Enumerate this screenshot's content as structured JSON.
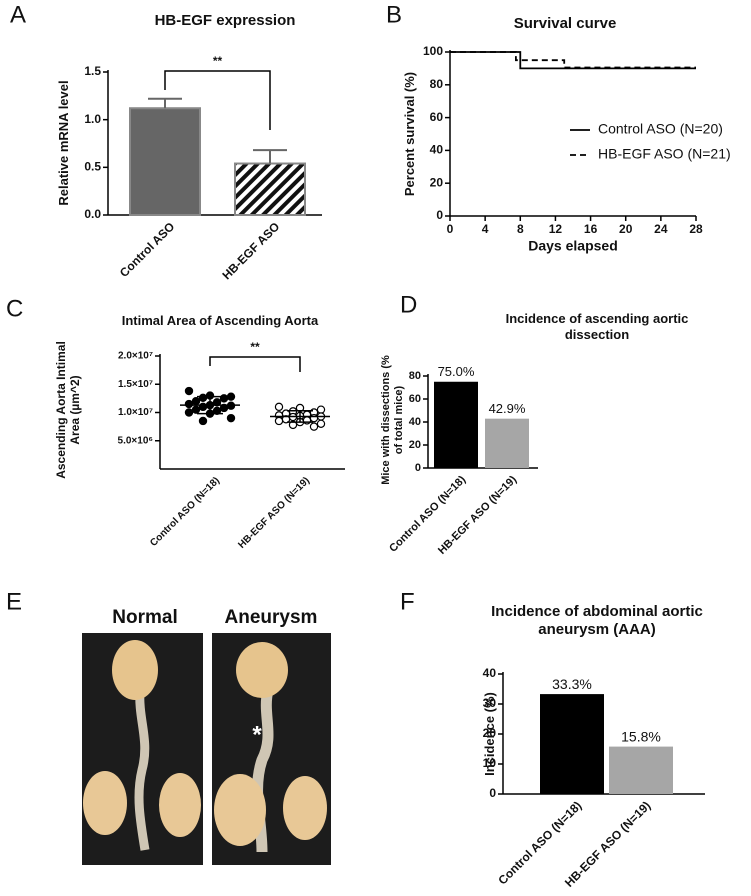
{
  "panel_labels": [
    "A",
    "B",
    "C",
    "D",
    "E",
    "F"
  ],
  "photo": {
    "labels": [
      "Normal",
      "Aneurysm"
    ],
    "marker": "*"
  },
  "chart_data": [
    {
      "type": "bar",
      "title": "HB-EGF expression",
      "y_label": "Relative mRNA level",
      "categories": [
        "Control ASO",
        "HB-EGF ASO"
      ],
      "values": [
        1.12,
        0.54
      ],
      "errors": [
        0.1,
        0.14
      ],
      "colors": [
        "#666666",
        "#ffffff"
      ],
      "hatch": [
        false,
        true
      ],
      "ylim": [
        0,
        1.5
      ],
      "yticks": [
        {
          "value": 0,
          "label": "0.0"
        },
        0.5,
        {
          "value": 1,
          "label": "1.0"
        },
        1.5
      ],
      "annotation": "**"
    },
    {
      "type": "line",
      "title": "Survival curve",
      "x_label": "Days elapsed",
      "y_label": "Percent survival (%)",
      "series": [
        {
          "name": "Control ASO (N=20)",
          "color": "#000000",
          "style": "solid",
          "x": [
            0,
            8,
            8,
            28
          ],
          "values": [
            100,
            100,
            90,
            90
          ]
        },
        {
          "name": "HB-EGF ASO (N=21)",
          "color": "#000000",
          "style": "dashed",
          "x": [
            0,
            7.5,
            7.5,
            13,
            13,
            28
          ],
          "values": [
            100,
            100,
            95,
            95,
            90.5,
            90.5
          ]
        }
      ],
      "xlim": [
        0,
        28
      ],
      "xticks": [
        0,
        4,
        8,
        12,
        16,
        20,
        24,
        28
      ],
      "ylim": [
        0,
        100
      ],
      "yticks": [
        0,
        20,
        40,
        60,
        80,
        100
      ],
      "legend": "right"
    },
    {
      "type": "strip",
      "title": "Intimal Area of Ascending Aorta",
      "y_label": "Ascending Aorta Intimal Area (µm^2)",
      "categories": [
        "Control ASO (N=18)",
        "HB-EGF ASO (N=19)"
      ],
      "groups": [
        [
          13800000,
          13000000,
          12800000,
          12600000,
          12500000,
          12000000,
          11800000,
          11500000,
          11300000,
          11200000,
          11000000,
          10800000,
          10500000,
          10300000,
          10000000,
          9800000,
          9000000,
          8500000
        ],
        [
          11000000,
          10800000,
          10500000,
          10200000,
          10000000,
          9800000,
          9600000,
          9500000,
          9400000,
          9300000,
          9200000,
          9000000,
          8800000,
          8600000,
          8500000,
          8300000,
          8000000,
          7800000,
          7500000
        ]
      ],
      "means": [
        11300000,
        9300000
      ],
      "sds": [
        1500000,
        1000000
      ],
      "marker_fill": [
        "#000000",
        "#ffffff"
      ],
      "ylim": [
        0,
        20000000
      ],
      "yticks": [
        {
          "value": 5000000,
          "label": "5.0×10⁶"
        },
        {
          "value": 10000000,
          "label": "1.0×10⁷"
        },
        {
          "value": 15000000,
          "label": "1.5×10⁷"
        },
        {
          "value": 20000000,
          "label": "2.0×10⁷"
        }
      ],
      "annotation": "**"
    },
    {
      "type": "bar",
      "title": "Incidence of ascending aortic dissection",
      "y_label": "Mice with dissections (% of total mice)",
      "categories": [
        "Control ASO (N=18)",
        "HB-EGF ASO (N=19)"
      ],
      "values": [
        75.0,
        42.9
      ],
      "value_labels": [
        "75.0%",
        "42.9%"
      ],
      "colors": [
        "#000000",
        "#a6a6a6"
      ],
      "ylim": [
        0,
        80
      ],
      "yticks": [
        0,
        20,
        40,
        60,
        80
      ]
    },
    {
      "type": "bar",
      "title": "Incidence of abdominal aortic aneurysm (AAA)",
      "y_label": "Incidence (%)",
      "categories": [
        "Control ASO (N=18)",
        "HB-EGF ASO (N=19)"
      ],
      "values": [
        33.3,
        15.8
      ],
      "value_labels": [
        "33.3%",
        "15.8%"
      ],
      "colors": [
        "#000000",
        "#a6a6a6"
      ],
      "ylim": [
        0,
        40
      ],
      "yticks": [
        0,
        10,
        20,
        30,
        40
      ]
    }
  ]
}
